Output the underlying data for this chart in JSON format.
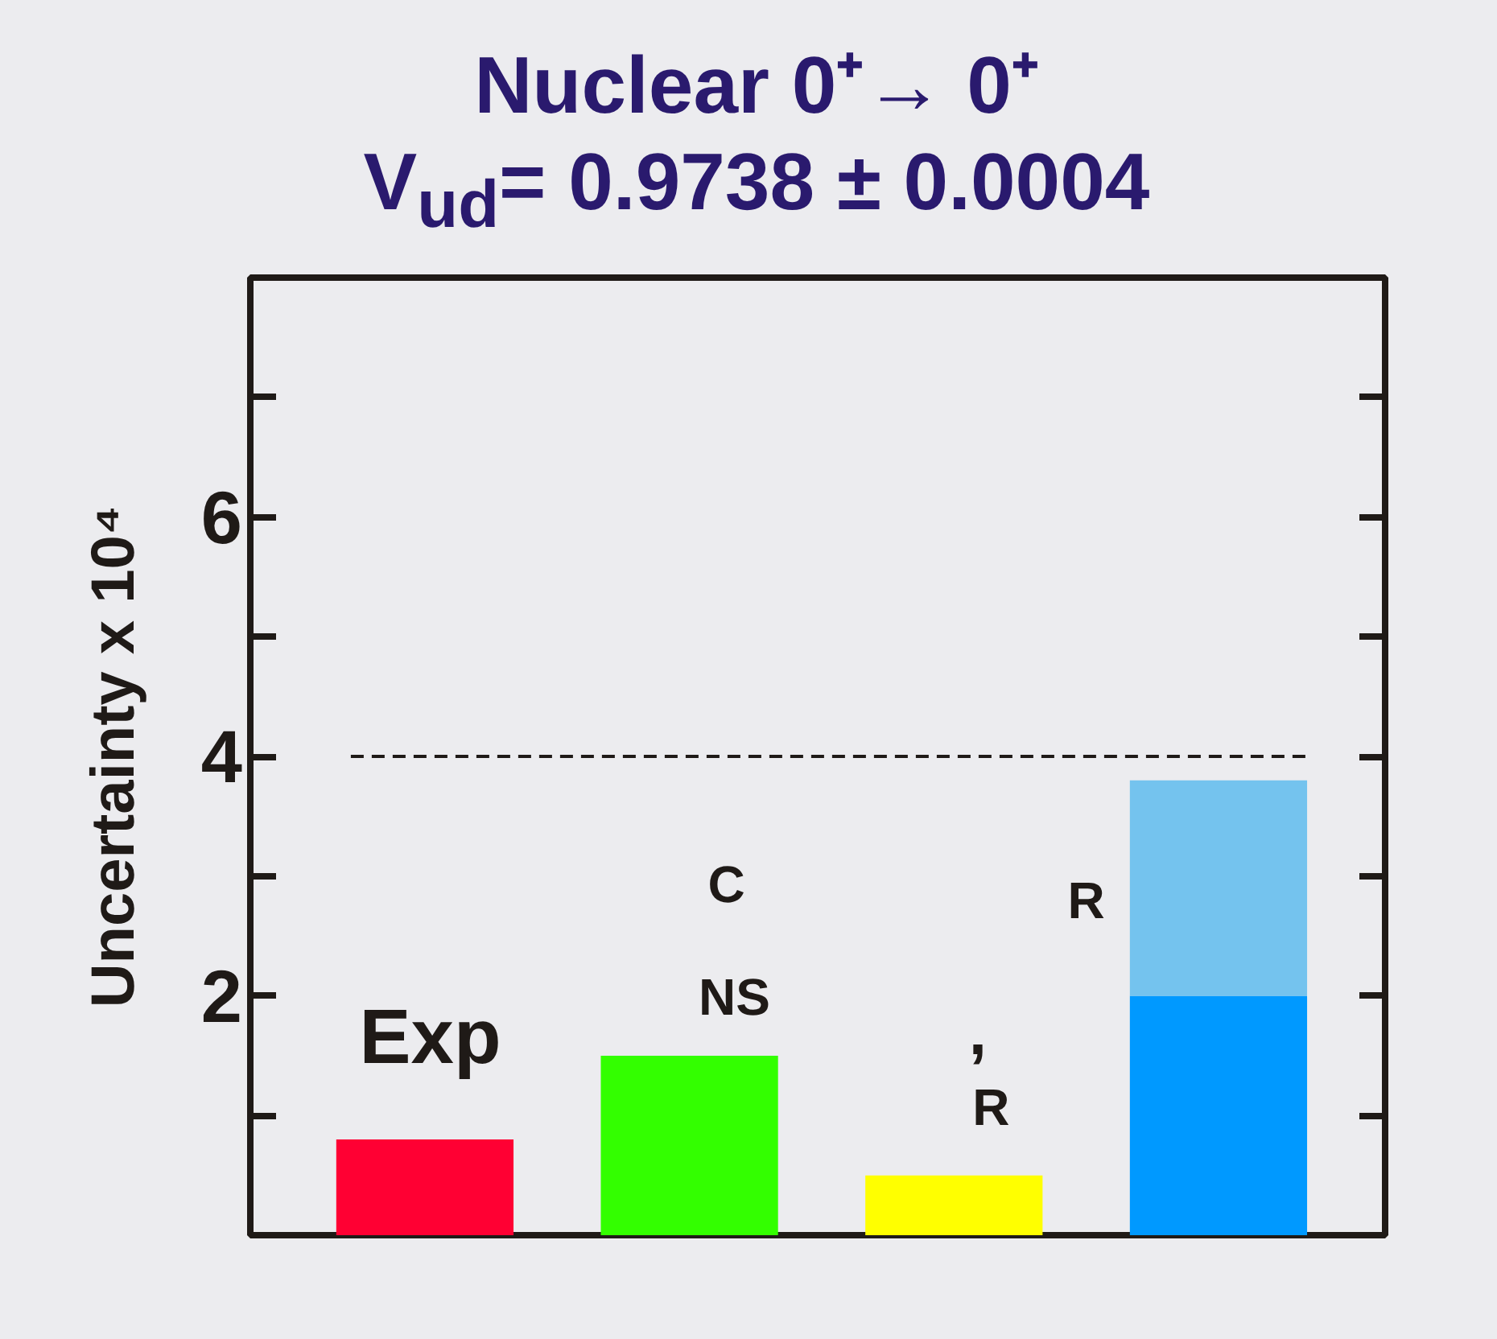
{
  "chart_data": {
    "type": "bar",
    "stacked": true,
    "title": "Nuclear 0⁺→ 0⁺",
    "subtitle": "V$_{ud}$= 0.9738 ± 0.0004",
    "ylabel": "Uncertainty x 10⁴",
    "categories": [
      null,
      null,
      null,
      null
    ],
    "series": [
      {
        "colors": [
          "#ff0033",
          "#33ff00",
          "#ffff00",
          "#0099ff"
        ],
        "values": [
          0.8,
          1.5,
          0.5,
          2.0
        ]
      },
      {
        "color": "#74c3ee",
        "values": [
          null,
          null,
          null,
          1.8
        ]
      }
    ],
    "ylim": [
      0,
      8
    ],
    "yticks": [
      {
        "value": 1,
        "label": null
      },
      2,
      {
        "value": 3,
        "label": null
      },
      4,
      {
        "value": 5,
        "label": null
      },
      6,
      {
        "value": 7,
        "label": null
      }
    ],
    "ref_lines": [
      {
        "axis": "y",
        "value": 4,
        "color": "#1f1a17",
        "line_style": "dashed"
      }
    ],
    "annotations": [
      "Exp",
      "C",
      "NS",
      ",",
      "R",
      "R"
    ],
    "grid": false
  }
}
